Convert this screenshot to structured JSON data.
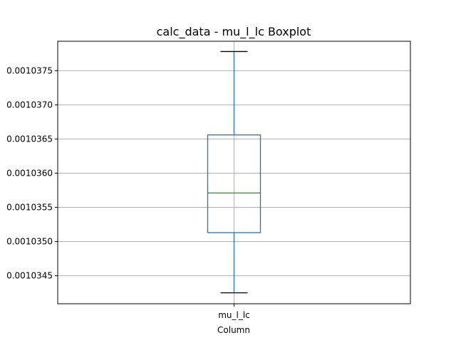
{
  "chart_data": {
    "type": "boxplot",
    "title": "calc_data - mu_l_lc Boxplot",
    "xlabel": "Column",
    "ylabel": "",
    "categories": [
      "mu_l_lc"
    ],
    "boxes": [
      {
        "category": "mu_l_lc",
        "whisker_low": 0.00103425,
        "q1": 0.00103513,
        "median": 0.00103571,
        "q3": 0.00103656,
        "whisker_high": 0.00103778
      }
    ],
    "y_ticks": [
      0.0010345,
      0.001035,
      0.0010355,
      0.001036,
      0.0010365,
      0.001037,
      0.0010375
    ],
    "y_tick_labels": [
      "0.0010345",
      "0.0010350",
      "0.0010355",
      "0.0010360",
      "0.0010365",
      "0.0010370",
      "0.0010375"
    ],
    "ylim": [
      0.00103409,
      0.00103793
    ],
    "grid": true,
    "colors": {
      "box": "#1f77b4",
      "median": "#2ca02c",
      "caps": "#000000",
      "grid": "#b0b0b0"
    }
  }
}
